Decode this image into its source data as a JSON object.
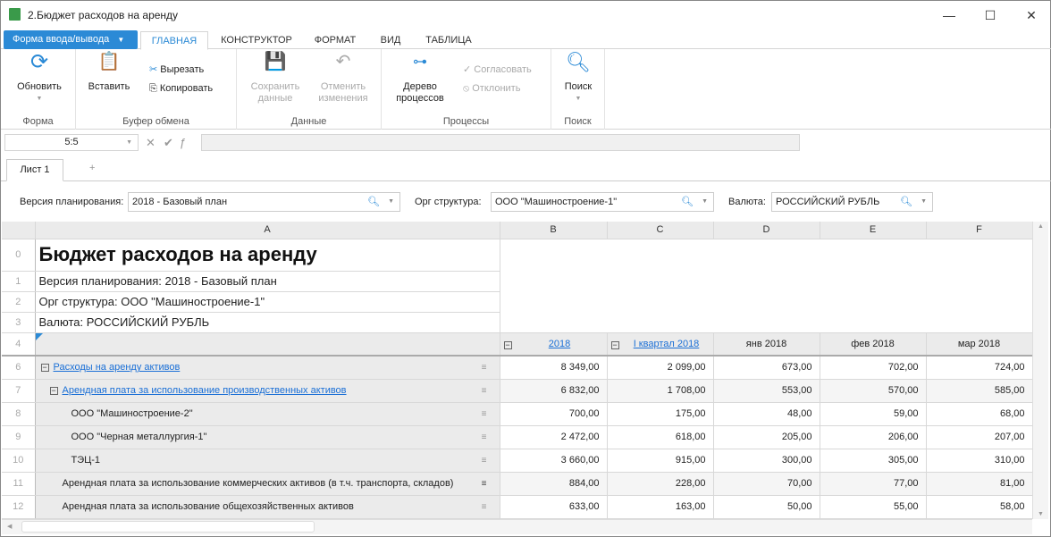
{
  "window": {
    "title": "2.Бюджет расходов на аренду"
  },
  "tabs": {
    "form_button": "Форма ввода/вывода",
    "items": [
      "ГЛАВНАЯ",
      "КОНСТРУКТОР",
      "ФОРМАТ",
      "ВИД",
      "ТАБЛИЦА"
    ],
    "active": "ГЛАВНАЯ"
  },
  "ribbon": {
    "refresh": "Обновить",
    "group_form": "Форма",
    "paste": "Вставить",
    "cut": "Вырезать",
    "copy": "Копировать",
    "group_clipboard": "Буфер обмена",
    "save1": "Сохранить",
    "save2": "данные",
    "undo1": "Отменить",
    "undo2": "изменения",
    "group_data": "Данные",
    "tree1": "Дерево",
    "tree2": "процессов",
    "approve": "Согласовать",
    "reject": "Отклонить",
    "group_processes": "Процессы",
    "search": "Поиск",
    "group_search": "Поиск"
  },
  "formula": {
    "cell_ref": "5:5",
    "value": ""
  },
  "sheets": {
    "items": [
      "Лист 1"
    ],
    "add": "+"
  },
  "params": {
    "version_label": "Версия планирования:",
    "version": "2018 - Базовый план",
    "org_label": "Орг структура:",
    "org": "ООО \"Машиностроение-1\"",
    "currency_label": "Валюта:",
    "currency": "РОССИЙСКИЙ РУБЛЬ"
  },
  "grid": {
    "columns": [
      "A",
      "B",
      "C",
      "D",
      "E",
      "F"
    ],
    "title": "Бюджет расходов на аренду",
    "info": [
      "Версия планирования: 2018 - Базовый план",
      "Орг структура: ООО \"Машиностроение-1\"",
      "Валюта: РОССИЙСКИЙ РУБЛЬ"
    ],
    "headers": [
      "2018",
      "I квартал 2018",
      "янв 2018",
      "фев 2018",
      "мар 2018"
    ],
    "rows": [
      {
        "n": "6",
        "label": "Расходы на аренду активов",
        "values": [
          "8 349,00",
          "2 099,00",
          "673,00",
          "702,00",
          "724,00"
        ]
      },
      {
        "n": "7",
        "label": "Арендная плата за использование производственных активов",
        "values": [
          "6 832,00",
          "1 708,00",
          "553,00",
          "570,00",
          "585,00"
        ]
      },
      {
        "n": "8",
        "label": "ООО \"Машиностроение-2\"",
        "values": [
          "700,00",
          "175,00",
          "48,00",
          "59,00",
          "68,00"
        ]
      },
      {
        "n": "9",
        "label": "ООО \"Черная металлургия-1\"",
        "values": [
          "2 472,00",
          "618,00",
          "205,00",
          "206,00",
          "207,00"
        ]
      },
      {
        "n": "10",
        "label": "ТЭЦ-1",
        "values": [
          "3 660,00",
          "915,00",
          "300,00",
          "305,00",
          "310,00"
        ]
      },
      {
        "n": "11",
        "label": "Арендная плата за использование коммерческих активов (в т.ч. транспорта, складов)",
        "values": [
          "884,00",
          "228,00",
          "70,00",
          "77,00",
          "81,00"
        ]
      },
      {
        "n": "12",
        "label": "Арендная плата за использование общехозяйственных активов",
        "values": [
          "633,00",
          "163,00",
          "50,00",
          "55,00",
          "58,00"
        ]
      }
    ],
    "rownums": [
      "0",
      "1",
      "2",
      "3",
      "4"
    ]
  },
  "colors": {
    "accent": "#2b8ad6",
    "link": "#1a6fd6",
    "header_bg": "#ebebeb"
  }
}
